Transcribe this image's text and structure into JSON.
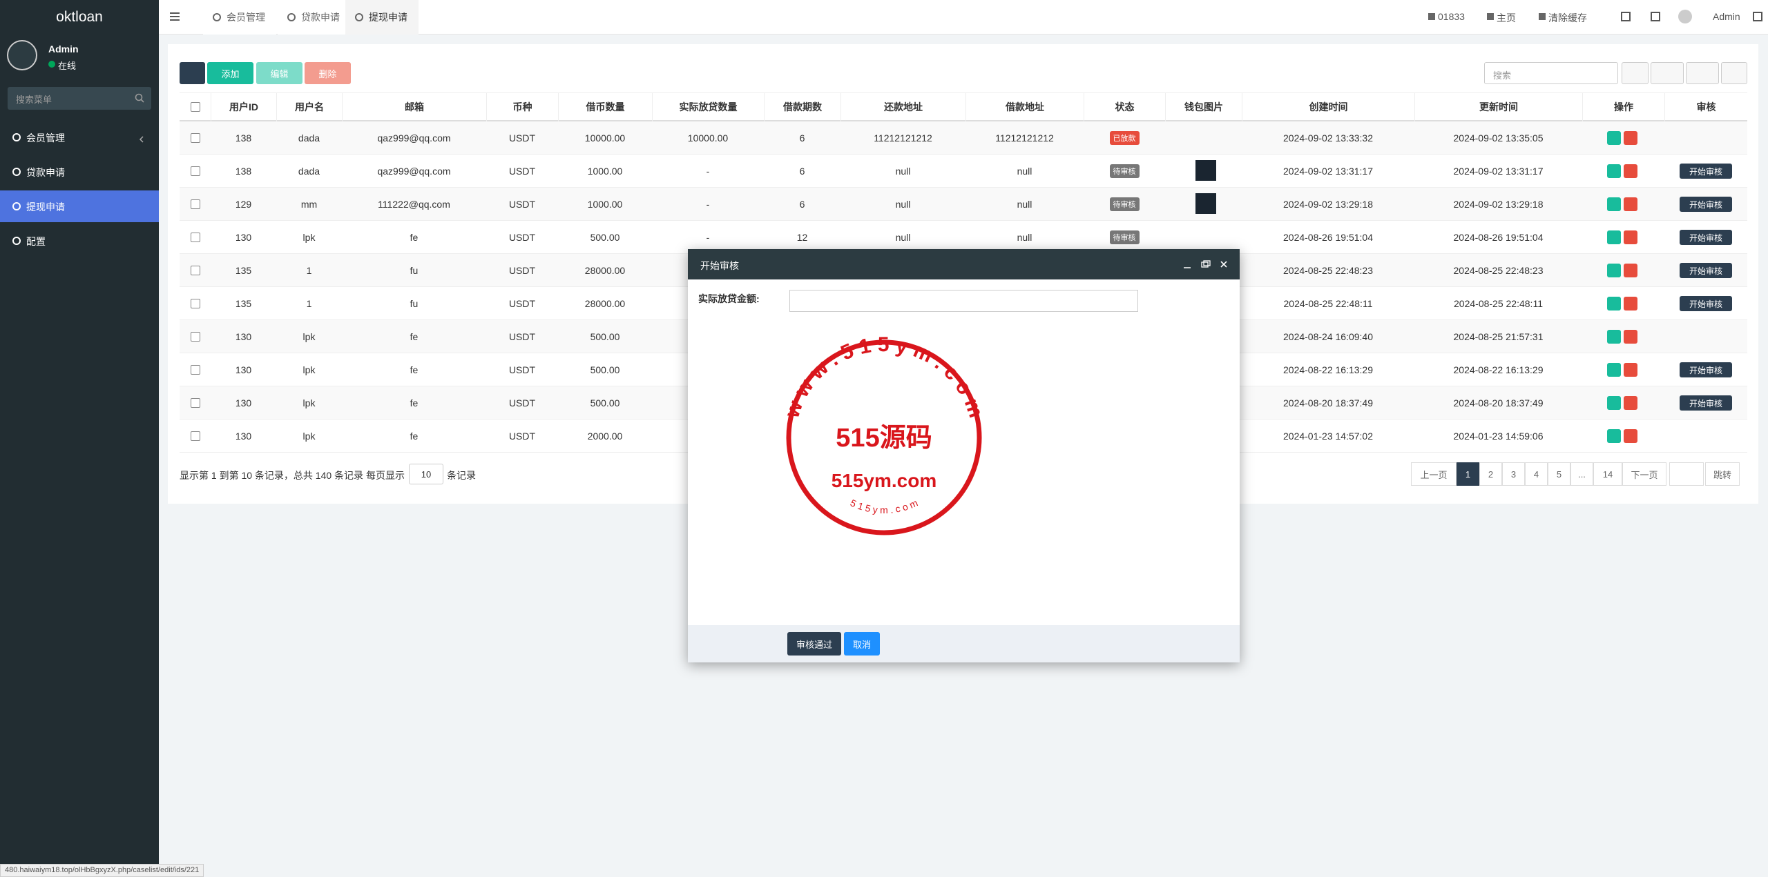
{
  "sidebar": {
    "logo": "oktloan",
    "user": "Admin",
    "status": "在线",
    "search_placeholder": "搜索菜单",
    "menu": [
      "会员管理",
      "贷款申请",
      "提现申请",
      "配置"
    ],
    "active_menu": 2
  },
  "topbar": {
    "tabs": [
      "会员管理",
      "贷款申请",
      "提现申请"
    ],
    "active_tab": 2,
    "links": [
      "01833",
      "主页",
      "清除缓存"
    ],
    "user": "Admin"
  },
  "toolbar": {
    "buttons": [
      "添加",
      "编辑",
      "删除"
    ],
    "button_colors": [
      "#18bc9c",
      "#7ddcc9",
      "#f39c8f"
    ],
    "search_placeholder": "搜索"
  },
  "table": {
    "headers": [
      "用户ID",
      "用户名",
      "邮箱",
      "币种",
      "借币数量",
      "实际放贷数量",
      "借款期数",
      "还款地址",
      "借款地址",
      "状态",
      "钱包图片",
      "创建时间",
      "更新时间",
      "操作",
      "审核"
    ],
    "rows": [
      {
        "cells": [
          "138",
          "dada",
          "qaz999@qq.com",
          "USDT",
          "10000.00",
          "10000.00",
          "6",
          "11212121212",
          "11212121212",
          "已放款",
          null,
          "2024-09-02 13:33:32",
          "2024-09-02 13:35:05",
          null,
          null
        ],
        "status_color": "#e74c3c",
        "image": false
      },
      {
        "cells": [
          "138",
          "dada",
          "qaz999@qq.com",
          "USDT",
          "1000.00",
          "-",
          "6",
          "null",
          "null",
          "待审核",
          null,
          "2024-09-02 13:31:17",
          "2024-09-02 13:31:17",
          null,
          "开始审核"
        ],
        "status_color": "#777777",
        "image": true
      },
      {
        "cells": [
          "129",
          "mm",
          "111222@qq.com",
          "USDT",
          "1000.00",
          "-",
          "6",
          "null",
          "null",
          "待审核",
          null,
          "2024-09-02 13:29:18",
          "2024-09-02 13:29:18",
          null,
          "开始审核"
        ],
        "status_color": "#777777",
        "image": true
      },
      {
        "cells": [
          "130",
          "lpk",
          "fe",
          "USDT",
          "500.00",
          "-",
          "12",
          "null",
          "null",
          "待审核",
          null,
          "2024-08-26 19:51:04",
          "2024-08-26 19:51:04",
          null,
          "开始审核"
        ],
        "status_color": "#777777",
        "image": false
      },
      {
        "cells": [
          "135",
          "1",
          "fu",
          "USDT",
          "28000.00",
          null,
          null,
          null,
          null,
          null,
          null,
          "2024-08-25 22:48:23",
          "2024-08-25 22:48:23",
          null,
          "开始审核"
        ],
        "status_color": null,
        "image": false
      },
      {
        "cells": [
          "135",
          "1",
          "fu",
          "USDT",
          "28000.00",
          null,
          null,
          null,
          null,
          null,
          null,
          "2024-08-25 22:48:11",
          "2024-08-25 22:48:11",
          null,
          "开始审核"
        ],
        "status_color": null,
        "image": false
      },
      {
        "cells": [
          "130",
          "lpk",
          "fe",
          "USDT",
          "500.00",
          null,
          null,
          null,
          null,
          null,
          null,
          "2024-08-24 16:09:40",
          "2024-08-25 21:57:31",
          null,
          null
        ],
        "status_color": null,
        "image": false
      },
      {
        "cells": [
          "130",
          "lpk",
          "fe",
          "USDT",
          "500.00",
          null,
          null,
          null,
          null,
          null,
          null,
          "2024-08-22 16:13:29",
          "2024-08-22 16:13:29",
          null,
          "开始审核"
        ],
        "status_color": null,
        "image": false
      },
      {
        "cells": [
          "130",
          "lpk",
          "fe",
          "USDT",
          "500.00",
          null,
          null,
          null,
          null,
          null,
          null,
          "2024-08-20 18:37:49",
          "2024-08-20 18:37:49",
          null,
          "开始审核"
        ],
        "status_color": null,
        "image": false
      },
      {
        "cells": [
          "130",
          "lpk",
          "fe",
          "USDT",
          "2000.00",
          null,
          null,
          null,
          null,
          null,
          null,
          "2024-01-23 14:57:02",
          "2024-01-23 14:59:06",
          null,
          null
        ],
        "status_color": null,
        "image": false
      }
    ]
  },
  "footer": {
    "summary": "显示第 1 到第 10 条记录，总共 140 条记录 每页显示",
    "page_size": "10",
    "suffix": "条记录"
  },
  "pagination": {
    "prev": "上一页",
    "pages": [
      "1",
      "2",
      "3",
      "4",
      "5",
      "...",
      "14"
    ],
    "active": 0,
    "next": "下一页",
    "go": "跳转"
  },
  "modal": {
    "title": "开始审核",
    "label": "实际放贷金额:",
    "buttons": [
      "审核通过",
      "取消"
    ]
  },
  "watermark": {
    "ring": "w w w . 5 1 5 y m . c o m",
    "main": "515源码",
    "site": "515ym.com",
    "small": "5 1 5 y m . c o m"
  },
  "status_bar": "480.haiwaiym18.top/olHbBgxyzX.php/caselist/edit/ids/221"
}
